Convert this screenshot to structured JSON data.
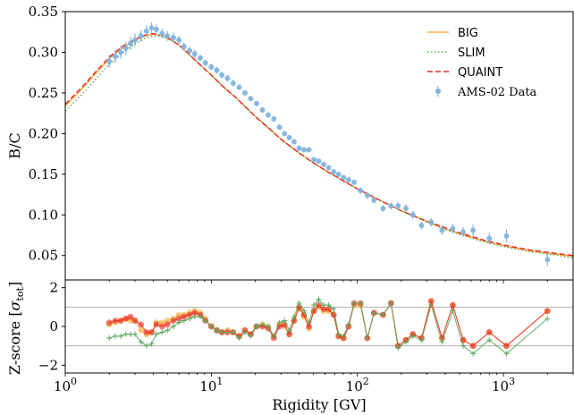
{
  "chart_data": [
    {
      "type": "line",
      "panel": "top",
      "ylabel": "B/C",
      "xscale": "log",
      "xlim": [
        1,
        3000
      ],
      "ylim": [
        0.02,
        0.35
      ],
      "yticks": [
        "0.05",
        "0.10",
        "0.15",
        "0.20",
        "0.25",
        "0.30",
        "0.35"
      ],
      "ytick_values": [
        0.05,
        0.1,
        0.15,
        0.2,
        0.25,
        0.3,
        0.35
      ],
      "legend_position": "top-right",
      "legend": [
        {
          "name": "BIG",
          "style": "solid",
          "color": "#f5b041"
        },
        {
          "name": "SLIM",
          "style": "dotted",
          "color": "#5aa55a"
        },
        {
          "name": "QUAINT",
          "style": "dashed",
          "color": "#e8281e"
        },
        {
          "name": "AMS-02 Data",
          "style": "errorbar",
          "color": "#7fb2de"
        }
      ],
      "series": [
        {
          "name": "BIG",
          "color": "#f5b041",
          "x": [
            1,
            1.3,
            1.6,
            2,
            2.5,
            3,
            3.5,
            4,
            4.5,
            5,
            6,
            7,
            8,
            10,
            12,
            15,
            20,
            25,
            30,
            40,
            50,
            60,
            80,
            100,
            150,
            200,
            300,
            400,
            500,
            700,
            1000,
            1500,
            2000,
            3000
          ],
          "y": [
            0.234,
            0.255,
            0.273,
            0.292,
            0.306,
            0.315,
            0.32,
            0.322,
            0.321,
            0.318,
            0.309,
            0.298,
            0.288,
            0.272,
            0.258,
            0.243,
            0.221,
            0.206,
            0.193,
            0.176,
            0.164,
            0.155,
            0.142,
            0.132,
            0.116,
            0.105,
            0.092,
            0.083,
            0.077,
            0.069,
            0.062,
            0.056,
            0.053,
            0.049
          ]
        },
        {
          "name": "SLIM",
          "color": "#5aa55a",
          "x": [
            1,
            1.3,
            1.6,
            2,
            2.5,
            3,
            3.5,
            4,
            4.5,
            5,
            6,
            7,
            8,
            10,
            12,
            15,
            20,
            25,
            30,
            40,
            50,
            60,
            80,
            100,
            150,
            200,
            300,
            400,
            500,
            700,
            1000,
            1500,
            2000,
            3000
          ],
          "y": [
            0.228,
            0.248,
            0.266,
            0.285,
            0.3,
            0.31,
            0.317,
            0.32,
            0.32,
            0.317,
            0.309,
            0.298,
            0.288,
            0.272,
            0.258,
            0.243,
            0.221,
            0.206,
            0.193,
            0.176,
            0.164,
            0.155,
            0.142,
            0.132,
            0.116,
            0.105,
            0.091,
            0.082,
            0.076,
            0.068,
            0.061,
            0.055,
            0.052,
            0.047
          ]
        },
        {
          "name": "QUAINT",
          "color": "#e8281e",
          "x": [
            1,
            1.3,
            1.6,
            2,
            2.5,
            3,
            3.5,
            4,
            4.5,
            5,
            6,
            7,
            8,
            10,
            12,
            15,
            20,
            25,
            30,
            40,
            50,
            60,
            80,
            100,
            150,
            200,
            300,
            400,
            500,
            700,
            1000,
            1500,
            2000,
            3000
          ],
          "y": [
            0.236,
            0.257,
            0.275,
            0.294,
            0.308,
            0.316,
            0.321,
            0.323,
            0.321,
            0.318,
            0.309,
            0.298,
            0.288,
            0.272,
            0.258,
            0.243,
            0.221,
            0.206,
            0.193,
            0.176,
            0.164,
            0.155,
            0.142,
            0.132,
            0.116,
            0.105,
            0.092,
            0.084,
            0.078,
            0.07,
            0.063,
            0.057,
            0.054,
            0.05
          ]
        },
        {
          "name": "AMS-02 Data",
          "color": "#7fb2de",
          "x": [
            2.0,
            2.2,
            2.4,
            2.6,
            2.8,
            3.0,
            3.3,
            3.6,
            3.9,
            4.2,
            4.6,
            5.0,
            5.5,
            6.0,
            6.5,
            7.1,
            7.7,
            8.4,
            9.1,
            10.0,
            10.9,
            11.8,
            12.9,
            14.1,
            15.5,
            17.0,
            18.6,
            20.4,
            22.4,
            24.5,
            26.8,
            29.3,
            31.7,
            34.2,
            36.9,
            39.9,
            43.1,
            46.6,
            50.4,
            54.4,
            58.8,
            63.6,
            68.8,
            74.4,
            80.4,
            87.0,
            95.0,
            105,
            117,
            130,
            150,
            170,
            190,
            215,
            240,
            275,
            320,
            380,
            450,
            530,
            620,
            800,
            1050,
            2000
          ],
          "y": [
            0.289,
            0.295,
            0.3,
            0.305,
            0.311,
            0.315,
            0.32,
            0.326,
            0.33,
            0.328,
            0.323,
            0.32,
            0.318,
            0.315,
            0.307,
            0.302,
            0.298,
            0.293,
            0.287,
            0.282,
            0.278,
            0.272,
            0.268,
            0.262,
            0.257,
            0.25,
            0.243,
            0.237,
            0.229,
            0.223,
            0.218,
            0.208,
            0.2,
            0.195,
            0.19,
            0.182,
            0.18,
            0.18,
            0.168,
            0.166,
            0.162,
            0.158,
            0.153,
            0.15,
            0.146,
            0.143,
            0.14,
            0.13,
            0.124,
            0.118,
            0.108,
            0.111,
            0.111,
            0.108,
            0.1,
            0.087,
            0.091,
            0.081,
            0.083,
            0.079,
            0.081,
            0.071,
            0.074,
            0.045
          ],
          "yerr": [
            0.008,
            0.008,
            0.008,
            0.008,
            0.008,
            0.008,
            0.007,
            0.007,
            0.007,
            0.007,
            0.006,
            0.006,
            0.006,
            0.005,
            0.005,
            0.005,
            0.005,
            0.004,
            0.004,
            0.004,
            0.004,
            0.004,
            0.004,
            0.004,
            0.003,
            0.003,
            0.003,
            0.003,
            0.003,
            0.003,
            0.003,
            0.003,
            0.003,
            0.003,
            0.003,
            0.003,
            0.003,
            0.003,
            0.003,
            0.003,
            0.003,
            0.003,
            0.003,
            0.003,
            0.003,
            0.003,
            0.003,
            0.004,
            0.004,
            0.004,
            0.004,
            0.004,
            0.005,
            0.005,
            0.005,
            0.005,
            0.005,
            0.006,
            0.006,
            0.006,
            0.007,
            0.007,
            0.008,
            0.008
          ]
        }
      ]
    },
    {
      "type": "line",
      "panel": "bottom",
      "xlabel": "Rigidity [GV]",
      "ylabel": "Z-score [σ_tot]",
      "ylabel_main": "Z-score [",
      "ylabel_sigma": "σ",
      "ylabel_sub": "tot",
      "ylabel_close": "]",
      "xscale": "log",
      "xlim": [
        1,
        3000
      ],
      "ylim": [
        -2.4,
        2.4
      ],
      "yticks": [
        "−2",
        "0",
        "2"
      ],
      "ytick_values": [
        -2,
        0,
        2
      ],
      "xtick_values": [
        1,
        10,
        100,
        1000
      ],
      "xtick_base": "10",
      "xtick_exponents": [
        "0",
        "1",
        "2",
        "3"
      ],
      "hlines": [
        -1,
        1
      ],
      "zscore_x": [
        2.0,
        2.2,
        2.4,
        2.6,
        2.8,
        3.0,
        3.3,
        3.6,
        3.9,
        4.2,
        4.6,
        5.0,
        5.5,
        6.0,
        6.5,
        7.1,
        7.7,
        8.4,
        9.1,
        10.0,
        10.9,
        11.8,
        12.9,
        14.1,
        15.5,
        17.0,
        18.6,
        20.4,
        22.4,
        24.5,
        26.8,
        29.3,
        31.7,
        34.2,
        36.9,
        39.9,
        43.1,
        46.6,
        50.4,
        54.4,
        58.8,
        63.6,
        68.8,
        74.4,
        80.4,
        87.0,
        95.0,
        105,
        117,
        130,
        150,
        170,
        190,
        215,
        240,
        275,
        320,
        380,
        450,
        530,
        620,
        800,
        1050,
        2000
      ],
      "series": [
        {
          "name": "BIG",
          "color": "#f5b041",
          "y": [
            0.1,
            0.2,
            0.3,
            0.4,
            0.3,
            0.3,
            -0.2,
            -0.4,
            -0.3,
            0.2,
            0.2,
            0.3,
            0.4,
            0.6,
            0.6,
            0.7,
            0.8,
            0.7,
            0.4,
            0.0,
            -0.2,
            -0.3,
            -0.2,
            -0.3,
            -0.5,
            -0.2,
            -0.4,
            0.0,
            0.1,
            0.0,
            -0.5,
            0.1,
            0.0,
            -0.4,
            0.3,
            0.9,
            0.5,
            -0.1,
            0.8,
            1.0,
            0.8,
            0.8,
            0.6,
            -0.5,
            -0.6,
            0.0,
            1.1,
            1.1,
            -0.6,
            0.7,
            0.6,
            1.2,
            -1.0,
            -0.7,
            -0.4,
            -0.6,
            1.3,
            -0.6,
            1.1,
            -0.7,
            -1.0,
            -0.3,
            -1.0,
            0.8
          ]
        },
        {
          "name": "SLIM",
          "color": "#5aa55a",
          "y": [
            -0.6,
            -0.5,
            -0.5,
            -0.4,
            -0.4,
            -0.4,
            -0.8,
            -1.0,
            -0.9,
            -0.4,
            -0.3,
            -0.2,
            0.0,
            0.2,
            0.3,
            0.4,
            0.5,
            0.5,
            0.3,
            0.0,
            -0.2,
            -0.3,
            -0.3,
            -0.3,
            -0.6,
            -0.3,
            -0.5,
            0.0,
            0.1,
            0.0,
            -0.5,
            0.2,
            0.3,
            -0.2,
            0.5,
            1.2,
            0.8,
            0.2,
            1.1,
            1.4,
            1.1,
            1.1,
            0.9,
            -0.4,
            -0.5,
            0.1,
            1.2,
            1.2,
            -0.6,
            0.7,
            0.6,
            1.2,
            -1.1,
            -0.8,
            -0.5,
            -0.7,
            1.1,
            -0.8,
            0.8,
            -1.0,
            -1.4,
            -0.7,
            -1.4,
            0.4
          ]
        },
        {
          "name": "QUAINT",
          "color": "#e8281e",
          "y": [
            0.2,
            0.3,
            0.3,
            0.4,
            0.5,
            0.3,
            0.1,
            -0.3,
            -0.3,
            0.1,
            0.0,
            0.1,
            0.3,
            0.4,
            0.5,
            0.6,
            0.7,
            0.6,
            0.3,
            0.0,
            -0.2,
            -0.3,
            -0.3,
            -0.3,
            -0.5,
            -0.2,
            -0.4,
            0.0,
            0.0,
            -0.1,
            -0.6,
            0.0,
            0.1,
            -0.4,
            0.3,
            1.0,
            0.6,
            0.0,
            0.8,
            1.1,
            0.9,
            0.9,
            0.6,
            -0.5,
            -0.6,
            0.0,
            1.2,
            1.2,
            -0.6,
            0.7,
            0.6,
            1.2,
            -1.0,
            -0.7,
            -0.4,
            -0.6,
            1.3,
            -0.6,
            1.1,
            -0.7,
            -1.0,
            -0.3,
            -1.0,
            0.8
          ]
        }
      ]
    }
  ]
}
